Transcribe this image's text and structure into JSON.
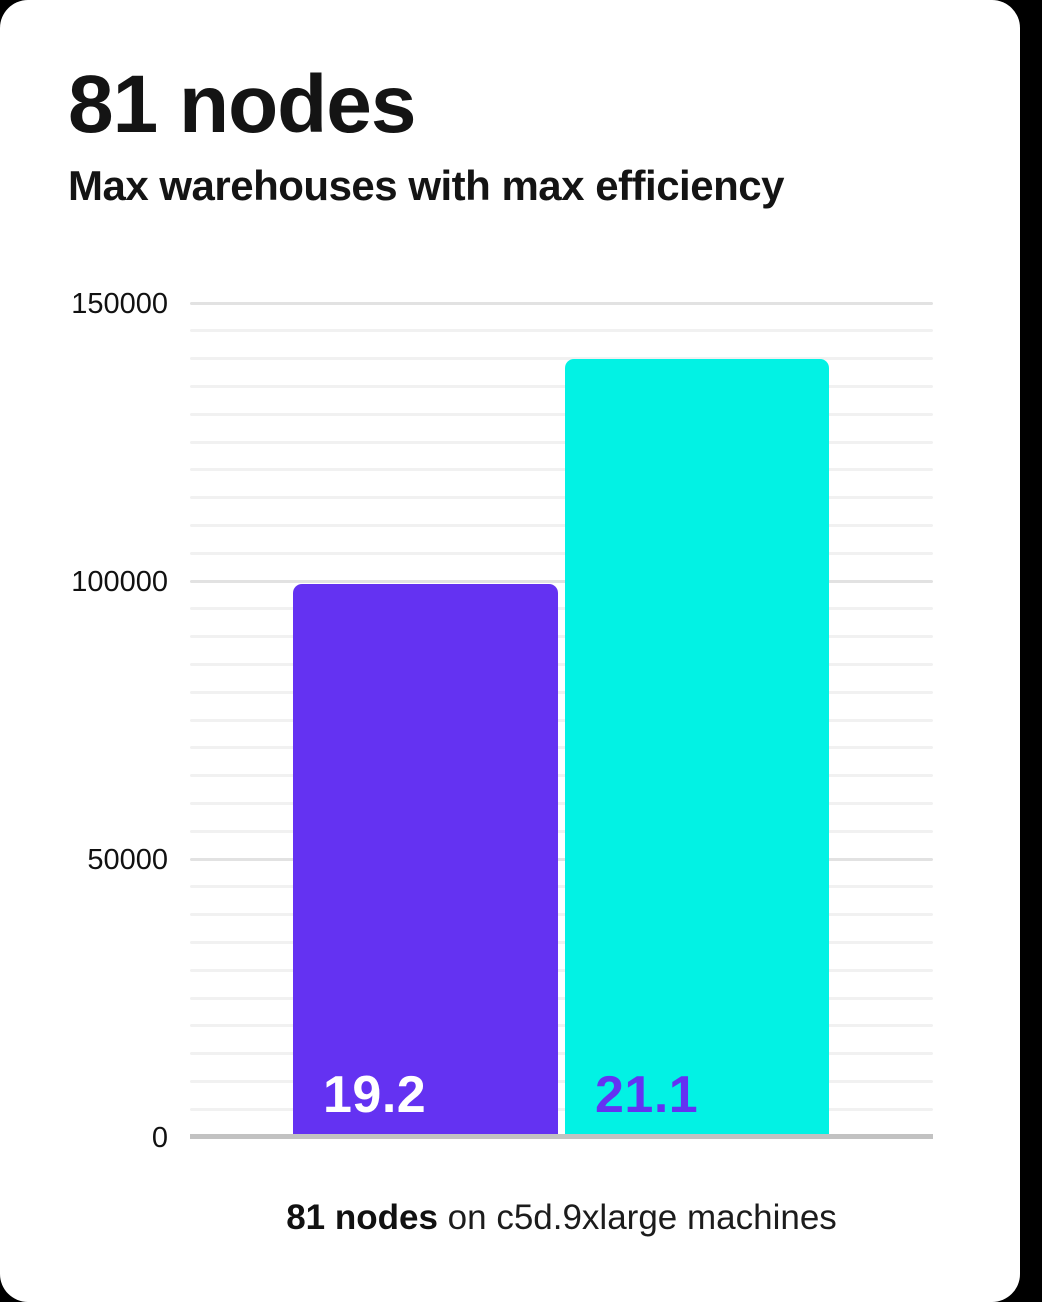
{
  "page": {
    "background_color": "#000000",
    "card_background_color": "#ffffff"
  },
  "header": {
    "title": "81 nodes",
    "subtitle": "Max warehouses with max efficiency"
  },
  "chart_data": {
    "type": "bar",
    "title": "81 nodes",
    "subtitle": "Max warehouses with max efficiency",
    "bars": [
      {
        "value": 99500,
        "inner_label": "19.2",
        "color": "#6432f2",
        "label_color": "#ffffff"
      },
      {
        "value": 140000,
        "inner_label": "21.1",
        "color": "#02f2e4",
        "label_color": "#6432f2"
      }
    ],
    "ylim": [
      0,
      150000
    ],
    "yticks": [
      150000,
      100000,
      50000,
      0
    ],
    "ytick_labels": [
      "150000",
      "100000",
      "50000",
      "0"
    ],
    "minor_grid_step": 5000,
    "grid": "horizontal-minor-and-major",
    "legend": "none",
    "xlabel": "",
    "ylabel": "",
    "caption": "81 nodes on c5d.9xlarge machines"
  },
  "caption": {
    "bold": "81 nodes",
    "rest": " on c5d.9xlarge machines"
  },
  "colors": {
    "bar_purple": "#6432f2",
    "bar_cyan": "#02f2e4",
    "grid_minor": "#f1f1f1",
    "grid_major": "#e2e2e2",
    "axis_line": "#c2c2c2",
    "text": "#141414"
  }
}
